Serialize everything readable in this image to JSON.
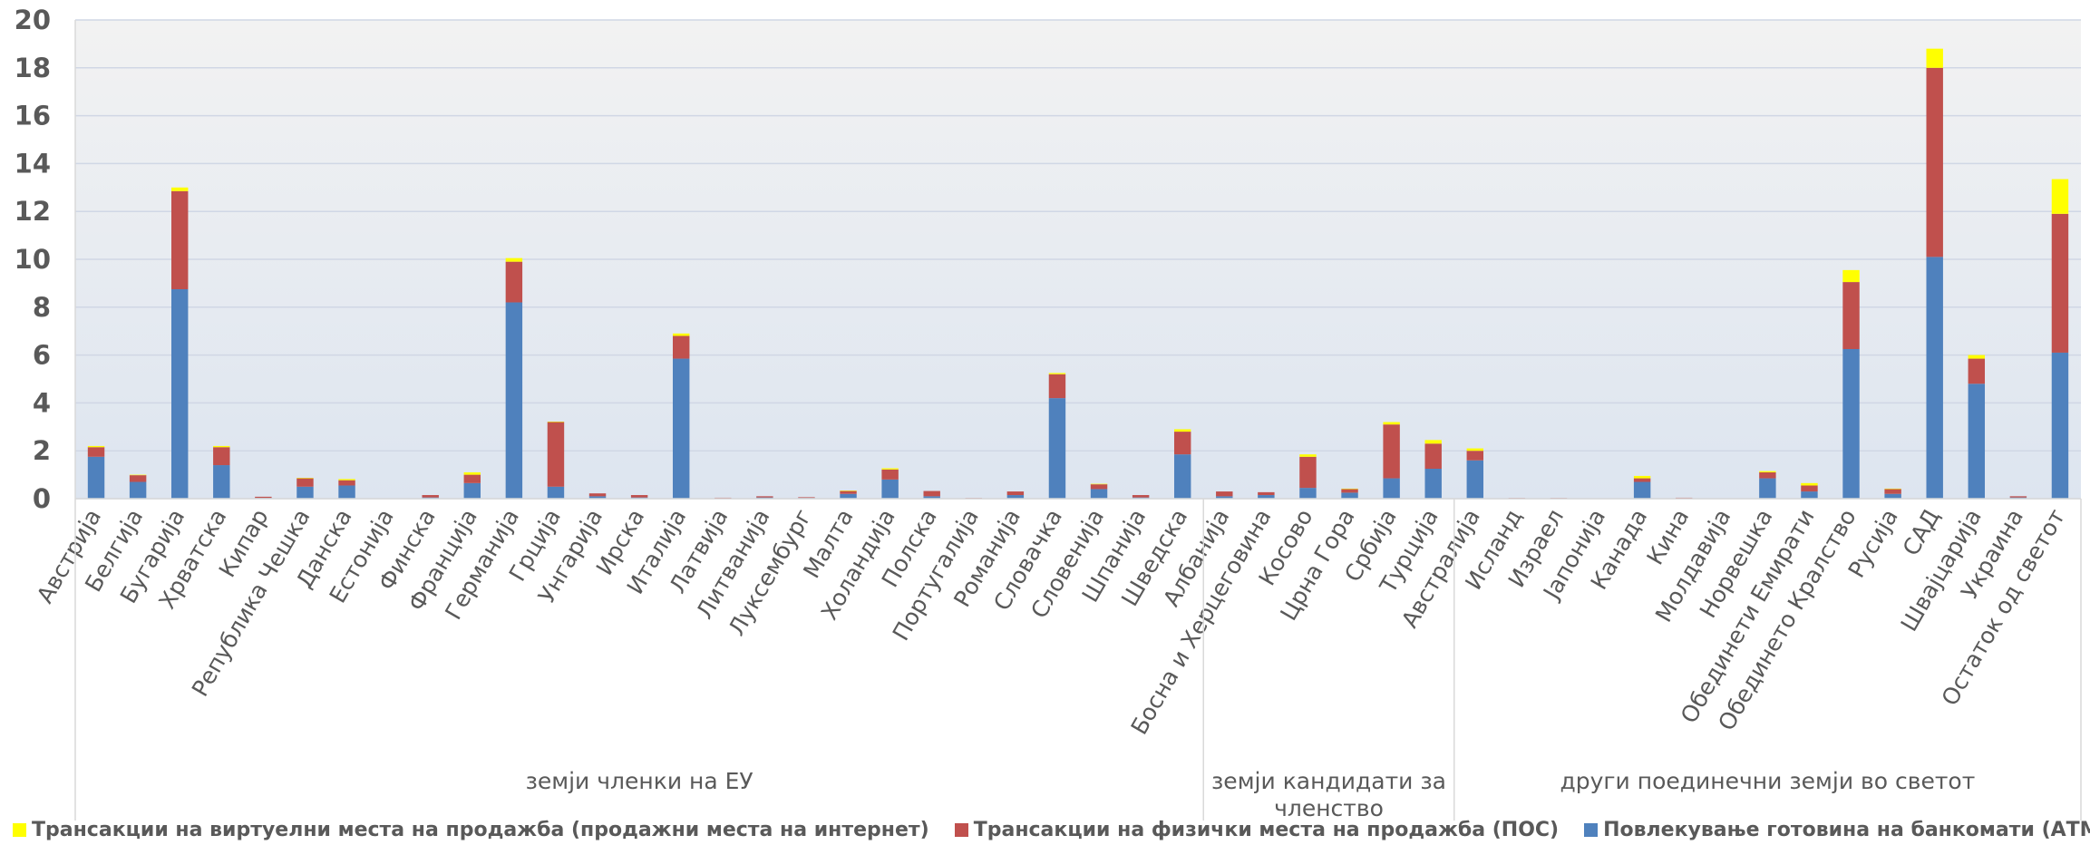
{
  "chart_data": {
    "type": "bar",
    "stacked": true,
    "ylim": [
      0,
      20
    ],
    "yticks": [
      0,
      2,
      4,
      6,
      8,
      10,
      12,
      14,
      16,
      18,
      20
    ],
    "grid": true,
    "legend_position": "bottom",
    "categories": [
      "Австрија",
      "Белгија",
      "Бугарија",
      "Хрватска",
      "Кипар",
      "Република Чешка",
      "Данска",
      "Естонија",
      "Финска",
      "Франција",
      "Германија",
      "Грција",
      "Унгарија",
      "Ирска",
      "Италија",
      "Латвија",
      "Литванија",
      "Луксембург",
      "Малта",
      "Холандија",
      "Полска",
      "Португалија",
      "Романија",
      "Словачка",
      "Словенија",
      "Шпанија",
      "Шведска",
      "Албанија",
      "Босна и Херцеговина",
      "Косово",
      "Црна Гора",
      "Србија",
      "Турција",
      "Австралија",
      "Исланд",
      "Израел",
      "Јапонија",
      "Канада",
      "Кина",
      "Молдавија",
      "Норвешка",
      "Обединети Емирати",
      "Обединето Кралство",
      "Русија",
      "САД",
      "Швајцарија",
      "Украина",
      "Остаток од светот"
    ],
    "groups": [
      {
        "label": "земји членки на ЕУ",
        "start": 0,
        "end": 26
      },
      {
        "label": "земји кандидати за членство",
        "start": 27,
        "end": 32
      },
      {
        "label": "други поединечни земји во светот",
        "start": 33,
        "end": 47
      }
    ],
    "series": [
      {
        "name": "Повлекување готовина на банкомати (АТМ)",
        "color": "#4f81bd",
        "values": [
          1.75,
          0.7,
          8.75,
          1.4,
          0.03,
          0.5,
          0.55,
          0,
          0.05,
          0.65,
          8.2,
          0.5,
          0.1,
          0.05,
          5.85,
          0.02,
          0.05,
          0.03,
          0.2,
          0.8,
          0.1,
          0.02,
          0.15,
          4.2,
          0.4,
          0.05,
          1.85,
          0.1,
          0.15,
          0.45,
          0.25,
          0.85,
          1.25,
          1.6,
          0.02,
          0.02,
          0,
          0.7,
          0.02,
          0,
          0.85,
          0.3,
          6.25,
          0.2,
          10.1,
          4.8,
          0.05,
          6.1
        ]
      },
      {
        "name": "Трансакции на физички места на продажба (ПОС)",
        "color": "#c0504d",
        "values": [
          0.4,
          0.28,
          4.1,
          0.75,
          0.05,
          0.35,
          0.22,
          0,
          0.1,
          0.35,
          1.7,
          2.7,
          0.12,
          0.1,
          0.95,
          0.02,
          0.05,
          0.03,
          0.12,
          0.42,
          0.22,
          0.01,
          0.15,
          1.0,
          0.2,
          0.1,
          0.95,
          0.2,
          0.12,
          1.3,
          0.15,
          2.25,
          1.05,
          0.4,
          0.01,
          0.01,
          0,
          0.15,
          0.02,
          0,
          0.25,
          0.25,
          2.8,
          0.2,
          7.9,
          1.05,
          0.05,
          5.8
        ]
      },
      {
        "name": "Трансакции на виртуелни места на продажба (продажни места на интернет)",
        "color": "#ffff00",
        "values": [
          0.05,
          0.02,
          0.15,
          0.05,
          0,
          0.02,
          0.05,
          0,
          0,
          0.1,
          0.15,
          0.02,
          0,
          0,
          0.1,
          0,
          0,
          0,
          0.02,
          0.05,
          0,
          0,
          0,
          0.05,
          0.02,
          0,
          0.1,
          0,
          0,
          0.1,
          0.02,
          0.1,
          0.15,
          0.1,
          0,
          0,
          0,
          0.1,
          0,
          0,
          0.05,
          0.1,
          0.5,
          0.02,
          0.8,
          0.15,
          0,
          1.45
        ]
      }
    ]
  }
}
